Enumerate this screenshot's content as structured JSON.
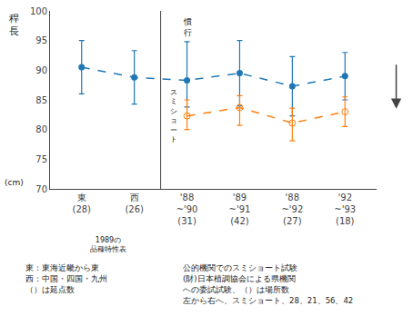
{
  "chart_data": {
    "type": "line",
    "categories": [
      "東\n(28)",
      "西\n(26)",
      "'88\n~'90\n(31)",
      "'89\n~'91\n(42)",
      "'88\n~'92\n(27)",
      "'92\n~'93\n(18)"
    ],
    "ylabel": "稈長",
    "ylim": [
      70,
      100
    ],
    "yticks": [
      70,
      75,
      80,
      85,
      90,
      95,
      100
    ],
    "grid": false,
    "line_style": "dash",
    "series": [
      {
        "marker": "circle",
        "values": [
          90.5,
          88.8,
          88.3,
          89.5,
          87.3,
          89.0
        ],
        "error_low": [
          4.5,
          4.5,
          4.5,
          5.5,
          5.0,
          4.0
        ],
        "error_high": [
          4.5,
          4.5,
          6.5,
          5.5,
          5.0,
          4.0
        ]
      },
      {
        "marker": "circle-open",
        "values": [
          null,
          null,
          82.3,
          83.7,
          81.1,
          83.0
        ],
        "error_low": [
          null,
          null,
          2.3,
          3.0,
          3.0,
          2.5
        ],
        "error_high": [
          null,
          null,
          2.7,
          2.0,
          2.5,
          2.5
        ]
      }
    ],
    "annotations": [
      {
        "text": "慣行",
        "x": "'88\n~'90\n(31)"
      },
      {
        "text": "スミショート",
        "x": "'88\n~'90\n(31)"
      },
      {
        "text": "(cm)"
      },
      {
        "text": "1989の\n品種特性表"
      }
    ],
    "notes": [
      "東：東海近畿から東",
      "西：中国・四国・九州",
      "（）は延点数",
      "公的機関でのスミショート試験",
      "(財)日本植調協会による県機関",
      "への委試試験、（）は場所数",
      "左から右へ、スミショート、28、21、56、42"
    ]
  }
}
